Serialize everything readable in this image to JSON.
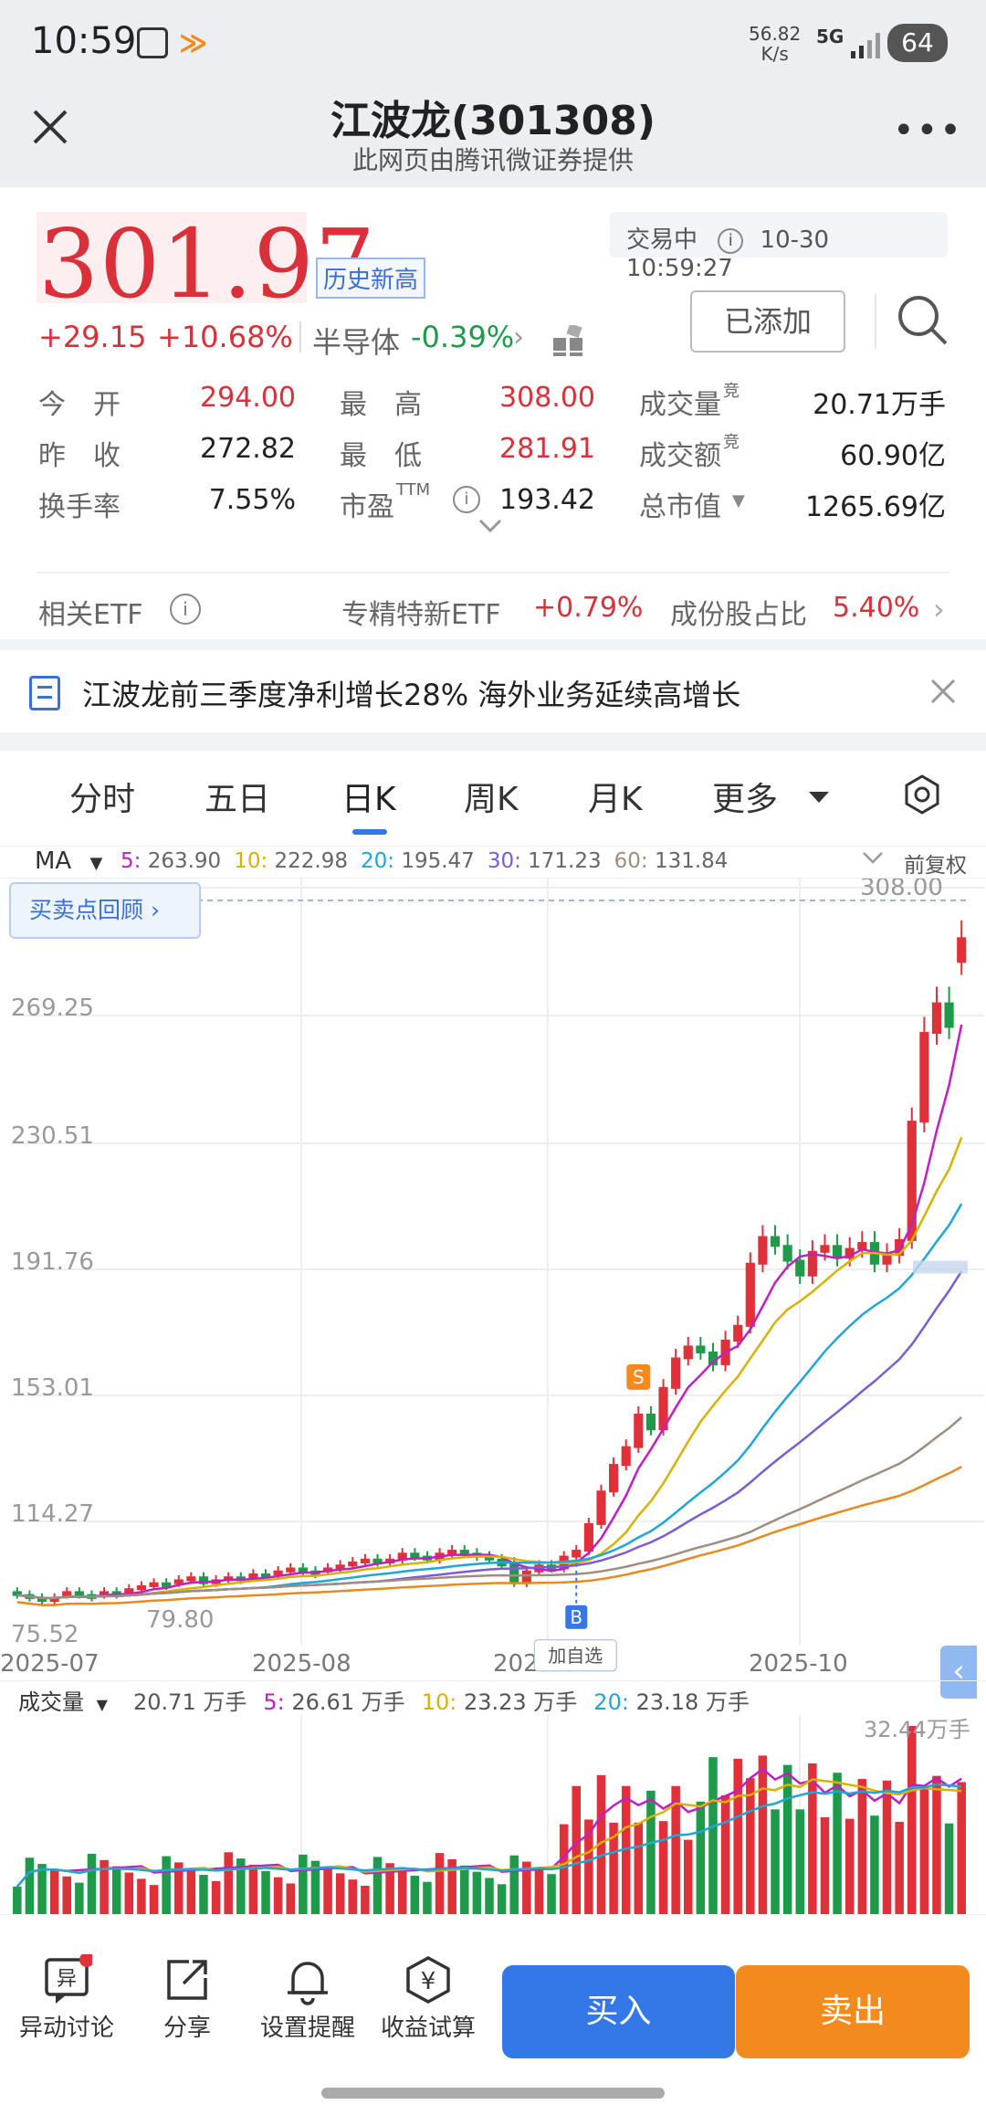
{
  "status": {
    "time": "10:59",
    "net_speed": "56.82",
    "net_unit": "K/s",
    "signal": "5G",
    "battery": "64"
  },
  "nav": {
    "title": "江波龙(301308)",
    "subtitle": "此网页由腾讯微证券提供"
  },
  "quote": {
    "price": "301.97",
    "badge": "历史新高",
    "status_label": "交易中",
    "timestamp": "10-30 10:59:27",
    "change": "+29.15",
    "change_pct": "+10.68%",
    "sector_name": "半导体",
    "sector_change": "-0.39%",
    "added_button": "已添加"
  },
  "stats": [
    {
      "label": "今　开",
      "value": "294.00",
      "color": "red"
    },
    {
      "label": "最　高",
      "value": "308.00",
      "color": "red"
    },
    {
      "label": "成交量",
      "sup": "竞",
      "value": "20.71万手",
      "color": "dark"
    },
    {
      "label": "昨　收",
      "value": "272.82",
      "color": "dark"
    },
    {
      "label": "最　低",
      "value": "281.91",
      "color": "red"
    },
    {
      "label": "成交额",
      "sup": "竞",
      "value": "60.90亿",
      "color": "dark"
    },
    {
      "label": "换手率",
      "value": "7.55%",
      "color": "dark"
    },
    {
      "label": "市盈",
      "sup": "TTM",
      "value": "193.42",
      "color": "dark"
    },
    {
      "label": "总市值",
      "value": "1265.69亿",
      "color": "dark"
    }
  ],
  "etf": {
    "label": "相关ETF",
    "name": "专精特新ETF",
    "change": "+0.79%",
    "share_label": "成份股占比",
    "share": "5.40%"
  },
  "news": {
    "text": "江波龙前三季度净利增长28% 海外业务延续高增长"
  },
  "tabs": [
    "分时",
    "五日",
    "日K",
    "周K",
    "月K",
    "更多"
  ],
  "ma": {
    "label": "MA",
    "items": [
      {
        "key": "5:",
        "value": "263.90",
        "color": "#c21fc2"
      },
      {
        "key": "10:",
        "value": "222.98",
        "color": "#d9b200"
      },
      {
        "key": "20:",
        "value": "195.47",
        "color": "#1ea7d6"
      },
      {
        "key": "30:",
        "value": "171.23",
        "color": "#7b5cd6"
      },
      {
        "key": "60:",
        "value": "131.84",
        "color": "#a08c80"
      }
    ],
    "adjust": "前复权"
  },
  "review_button": "买卖点回顾",
  "chart_data": {
    "type": "candlestick",
    "y_ticks": [
      "308.00",
      "269.25",
      "230.51",
      "191.76",
      "153.01",
      "114.27",
      "79.80",
      "75.52"
    ],
    "x_ticks": [
      "2025-07",
      "2025-08",
      "2025-09",
      "2025-10"
    ],
    "markers": {
      "buy": "B",
      "sell": "S",
      "add_watch": "加自选"
    },
    "closes": [
      80,
      79,
      78,
      79,
      81,
      80,
      79,
      81,
      80,
      82,
      83,
      84,
      83,
      85,
      86,
      84,
      85,
      86,
      85,
      87,
      86,
      88,
      89,
      88,
      87,
      89,
      90,
      91,
      92,
      91,
      92,
      94,
      93,
      92,
      94,
      95,
      94,
      93,
      92,
      90,
      84,
      88,
      90,
      89,
      93,
      95,
      104,
      115,
      124,
      130,
      141,
      136,
      150,
      160,
      164,
      162,
      158,
      166,
      171,
      192,
      201,
      198,
      193,
      188,
      196,
      198,
      194,
      197,
      199,
      192,
      195,
      200,
      240,
      270,
      280,
      272,
      302
    ],
    "opens": [
      81,
      80,
      79,
      78,
      80,
      81,
      80,
      80,
      81,
      81,
      82,
      83,
      84,
      84,
      85,
      86,
      84,
      85,
      86,
      86,
      87,
      87,
      88,
      89,
      88,
      88,
      89,
      90,
      91,
      92,
      91,
      92,
      94,
      93,
      92,
      94,
      95,
      94,
      93,
      92,
      91,
      84,
      88,
      90,
      89,
      93,
      95,
      104,
      115,
      124,
      130,
      141,
      136,
      150,
      160,
      164,
      162,
      158,
      166,
      171,
      192,
      201,
      198,
      193,
      188,
      196,
      198,
      194,
      197,
      199,
      192,
      195,
      200,
      240,
      270,
      280,
      294
    ]
  },
  "volume": {
    "label": "成交量",
    "items": [
      {
        "key": "",
        "value": "20.71 万手",
        "color": "#333"
      },
      {
        "key": "5:",
        "value": "26.61 万手",
        "color": "#c21fc2"
      },
      {
        "key": "10:",
        "value": "23.23 万手",
        "color": "#d9b200"
      },
      {
        "key": "20:",
        "value": "23.18 万手",
        "color": "#1ea7d6"
      }
    ],
    "max_label": "32.44万手"
  },
  "bottom": {
    "items": [
      "异动讨论",
      "分享",
      "设置提醒",
      "收益试算"
    ],
    "buy": "买入",
    "sell": "卖出"
  },
  "colors": {
    "up": "#e0313b",
    "down": "#1f9a4a",
    "accent": "#3478e8"
  }
}
